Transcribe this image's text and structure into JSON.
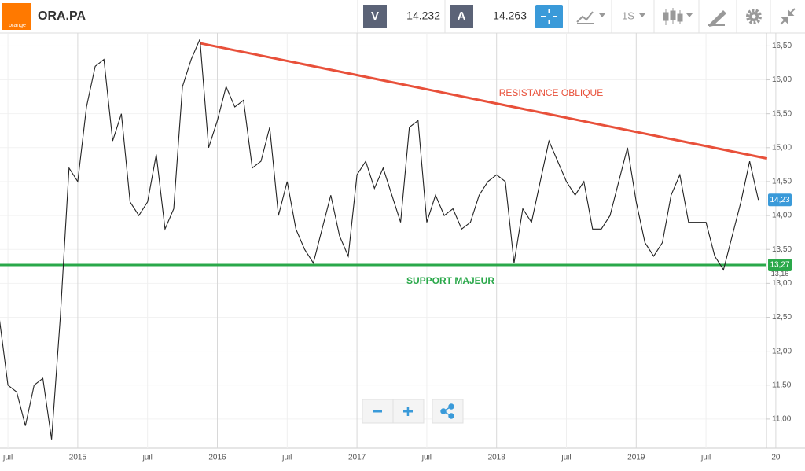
{
  "toolbar": {
    "logo": "orange",
    "symbol": "ORA.PA",
    "bid_label": "V",
    "bid": "14.232",
    "ask_label": "A",
    "ask": "14.263",
    "period": "1S"
  },
  "chart_data": {
    "type": "line",
    "categories": [
      null,
      "juil",
      null,
      null,
      null,
      null,
      null,
      null,
      null,
      "2015",
      null,
      null,
      null,
      null,
      null,
      null,
      null,
      "juil",
      null,
      null,
      null,
      null,
      null,
      null,
      null,
      "2016",
      null,
      null,
      null,
      null,
      null,
      null,
      null,
      "juil",
      null,
      null,
      null,
      null,
      null,
      null,
      null,
      "2017",
      null,
      null,
      null,
      null,
      null,
      null,
      null,
      "juil",
      null,
      null,
      null,
      null,
      null,
      null,
      null,
      "2018",
      null,
      null,
      null,
      null,
      null,
      null,
      null,
      "juil",
      null,
      null,
      null,
      null,
      null,
      null,
      null,
      "2019",
      null,
      null,
      null,
      null,
      null,
      null,
      null,
      "juil",
      null,
      null,
      null,
      null,
      null,
      null,
      null,
      "20"
    ],
    "series": [
      {
        "name": "ORA.PA",
        "color": "#222222",
        "values": [
          12.5,
          11.5,
          11.4,
          10.9,
          11.5,
          11.6,
          10.7,
          12.5,
          14.7,
          14.5,
          15.6,
          16.2,
          16.3,
          15.1,
          15.5,
          14.2,
          14.0,
          14.2,
          14.9,
          13.8,
          14.1,
          15.9,
          16.3,
          16.6,
          15.0,
          15.4,
          15.9,
          15.6,
          15.7,
          14.7,
          14.8,
          15.3,
          14.0,
          14.5,
          13.8,
          13.5,
          13.3,
          13.8,
          14.3,
          13.7,
          13.4,
          14.6,
          14.8,
          14.4,
          14.7,
          14.3,
          13.9,
          15.3,
          15.4,
          13.9,
          14.3,
          14.0,
          14.1,
          13.8,
          13.9,
          14.3,
          14.5,
          14.6,
          14.5,
          13.3,
          14.1,
          13.9,
          14.5,
          15.1,
          14.8,
          14.5,
          14.3,
          14.5,
          13.8,
          13.8,
          14.0,
          14.5,
          15.0,
          14.2,
          13.6,
          13.4,
          13.6,
          14.3,
          14.6,
          13.9,
          13.9,
          13.9,
          13.4,
          13.2,
          13.7,
          14.2,
          14.8,
          14.23,
          null,
          null
        ],
        "value_labels": [
          null,
          null,
          null,
          null,
          null,
          null,
          null,
          null,
          null,
          null,
          null,
          null,
          null,
          null,
          null,
          null,
          null,
          null,
          null,
          null,
          null,
          null,
          null,
          null,
          null,
          null,
          null,
          null,
          null,
          null,
          null,
          null,
          null,
          null,
          null,
          null,
          null,
          null,
          null,
          null,
          null,
          null,
          null,
          null,
          null,
          null,
          null,
          null,
          null,
          null,
          null,
          null,
          null,
          null,
          null,
          null,
          null,
          null,
          null,
          null,
          null,
          null,
          null,
          null,
          null,
          null,
          null,
          null,
          null,
          null,
          null,
          null,
          null,
          null,
          null,
          null,
          null,
          null,
          null,
          null,
          null,
          null,
          null,
          null,
          null,
          null,
          null,
          "14,23",
          null,
          null
        ],
        "label_color": "#3a9ad9"
      }
    ],
    "lines": [
      {
        "name": "RESISTANCE OBLIQUE",
        "color": "#e8503a",
        "start": [
          23,
          16.54
        ],
        "end": [
          88,
          14.84
        ]
      },
      {
        "name": "SUPPORT MAJEUR",
        "color": "#2aa84a",
        "value": 13.27,
        "label": "13,27"
      }
    ],
    "low_marker": {
      "value": 13.16,
      "label": "13,16"
    },
    "ylim": [
      10.57,
      16.69
    ],
    "yticks": [
      {
        "value": 11,
        "label": "11,00"
      },
      {
        "value": 11.5,
        "label": "11,50"
      },
      {
        "value": 12,
        "label": "12,00"
      },
      {
        "value": 12.5,
        "label": "12,50"
      },
      {
        "value": 13,
        "label": "13,00"
      },
      {
        "value": 13.5,
        "label": "13,50"
      },
      {
        "value": 14,
        "label": "14,00"
      },
      {
        "value": 14.5,
        "label": "14,50"
      },
      {
        "value": 15,
        "label": "15,00"
      },
      {
        "value": 15.5,
        "label": "15,50"
      },
      {
        "value": 16,
        "label": "16,00"
      },
      {
        "value": 16.5,
        "label": "16,50"
      }
    ],
    "grid": true
  }
}
